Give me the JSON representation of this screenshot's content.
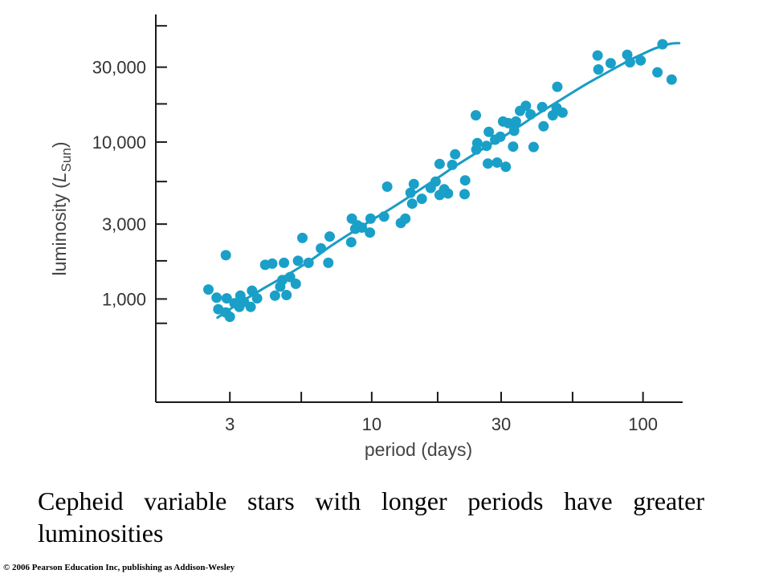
{
  "chart_data": {
    "type": "scatter",
    "xlabel": "period (days)",
    "ylabel": {
      "prefix": "luminosity (",
      "symbol": "L",
      "subscript": "Sun",
      "suffix": ")"
    },
    "x_scale": "log",
    "y_scale": "log",
    "xlim": [
      1.6,
      140
    ],
    "ylim": [
      220,
      65000
    ],
    "x_ticks": [
      {
        "value": 3,
        "label": "3"
      },
      {
        "value": 5.5,
        "label": ""
      },
      {
        "value": 10,
        "label": "10"
      },
      {
        "value": 17.5,
        "label": ""
      },
      {
        "value": 30,
        "label": "30"
      },
      {
        "value": 55,
        "label": ""
      },
      {
        "value": 100,
        "label": "100"
      }
    ],
    "y_ticks": [
      {
        "value": 700,
        "label": ""
      },
      {
        "value": 1000,
        "label": "1,000"
      },
      {
        "value": 1750,
        "label": ""
      },
      {
        "value": 3000,
        "label": "3,000"
      },
      {
        "value": 5600,
        "label": ""
      },
      {
        "value": 10000,
        "label": "10,000"
      },
      {
        "value": 17500,
        "label": ""
      },
      {
        "value": 30000,
        "label": "30,000"
      },
      {
        "value": 55000,
        "label": ""
      }
    ],
    "grid": false,
    "legend": "none",
    "colors": {
      "points": "#1aa0c8",
      "fit_line": "#1a9cc4",
      "axes": "#1a1a1a"
    },
    "series": [
      {
        "points": [
          [
            2.5,
            1150
          ],
          [
            2.68,
            1020
          ],
          [
            2.72,
            860
          ],
          [
            2.9,
            1900
          ],
          [
            2.92,
            1010
          ],
          [
            2.9,
            820
          ],
          [
            3.0,
            770
          ],
          [
            3.12,
            940
          ],
          [
            3.25,
            890
          ],
          [
            3.28,
            1050
          ],
          [
            3.38,
            960
          ],
          [
            3.58,
            890
          ],
          [
            3.62,
            1130
          ],
          [
            3.78,
            1010
          ],
          [
            4.05,
            1650
          ],
          [
            4.3,
            1680
          ],
          [
            4.4,
            1050
          ],
          [
            4.6,
            1200
          ],
          [
            4.68,
            1320
          ],
          [
            4.75,
            1700
          ],
          [
            4.85,
            1060
          ],
          [
            5.0,
            1380
          ],
          [
            5.25,
            1250
          ],
          [
            5.35,
            1750
          ],
          [
            5.55,
            2450
          ],
          [
            5.85,
            1700
          ],
          [
            6.5,
            2100
          ],
          [
            6.92,
            1700
          ],
          [
            7.0,
            2500
          ],
          [
            8.4,
            2300
          ],
          [
            8.45,
            3250
          ],
          [
            8.7,
            2800
          ],
          [
            8.85,
            2950
          ],
          [
            9.2,
            2850
          ],
          [
            9.85,
            2650
          ],
          [
            9.9,
            3250
          ],
          [
            11.1,
            3350
          ],
          [
            11.4,
            5200
          ],
          [
            12.8,
            3050
          ],
          [
            13.3,
            3250
          ],
          [
            13.9,
            4750
          ],
          [
            14.1,
            4050
          ],
          [
            14.3,
            5400
          ],
          [
            15.3,
            4350
          ],
          [
            16.5,
            5100
          ],
          [
            17.2,
            5600
          ],
          [
            17.8,
            4600
          ],
          [
            17.8,
            7250
          ],
          [
            18.5,
            5000
          ],
          [
            19.1,
            4700
          ],
          [
            19.8,
            7150
          ],
          [
            20.3,
            8350
          ],
          [
            22.0,
            4650
          ],
          [
            22.1,
            5700
          ],
          [
            24.2,
            14800
          ],
          [
            24.3,
            8950
          ],
          [
            24.5,
            9850
          ],
          [
            26.5,
            9450
          ],
          [
            26.8,
            7300
          ],
          [
            27.0,
            11600
          ],
          [
            28.5,
            10350
          ],
          [
            29.0,
            7400
          ],
          [
            29.8,
            10800
          ],
          [
            30.5,
            13500
          ],
          [
            31.2,
            6950
          ],
          [
            31.9,
            13200
          ],
          [
            33.2,
            9350
          ],
          [
            33.5,
            11800
          ],
          [
            34.0,
            13500
          ],
          [
            35.2,
            15800
          ],
          [
            37.0,
            17000
          ],
          [
            38.5,
            15000
          ],
          [
            39.5,
            9300
          ],
          [
            42.5,
            16700
          ],
          [
            43.0,
            12600
          ],
          [
            46.5,
            14800
          ],
          [
            48.0,
            16500
          ],
          [
            48.3,
            22500
          ],
          [
            50.5,
            15400
          ],
          [
            68.0,
            35600
          ],
          [
            68.5,
            29000
          ],
          [
            76.0,
            31800
          ],
          [
            87.5,
            36000
          ],
          [
            89.5,
            32200
          ],
          [
            98.0,
            33100
          ],
          [
            113.0,
            27800
          ],
          [
            118.0,
            42000
          ],
          [
            127.5,
            25000
          ]
        ]
      }
    ],
    "fit_line": [
      [
        2.7,
        760
      ],
      [
        3.0,
        860
      ],
      [
        3.5,
        1020
      ],
      [
        4.0,
        1170
      ],
      [
        5.0,
        1460
      ],
      [
        6.0,
        1780
      ],
      [
        7.0,
        2150
      ],
      [
        8.0,
        2500
      ],
      [
        10.0,
        3180
      ],
      [
        12.0,
        3850
      ],
      [
        15.0,
        4950
      ],
      [
        18.0,
        6100
      ],
      [
        20.0,
        6900
      ],
      [
        25.0,
        8800
      ],
      [
        30.0,
        10600
      ],
      [
        35.0,
        12600
      ],
      [
        40.0,
        14700
      ],
      [
        50.0,
        18700
      ],
      [
        60.0,
        22700
      ],
      [
        70.0,
        26400
      ],
      [
        80.0,
        30000
      ],
      [
        90.0,
        33500
      ],
      [
        100.0,
        36500
      ],
      [
        110.0,
        39300
      ],
      [
        120.0,
        41300
      ],
      [
        128.0,
        42500
      ],
      [
        136.0,
        42700
      ]
    ]
  },
  "caption": "Cepheid variable stars with longer periods have greater luminosities",
  "copyright": "© 2006 Pearson Education Inc, publishing as Addison-Wesley"
}
